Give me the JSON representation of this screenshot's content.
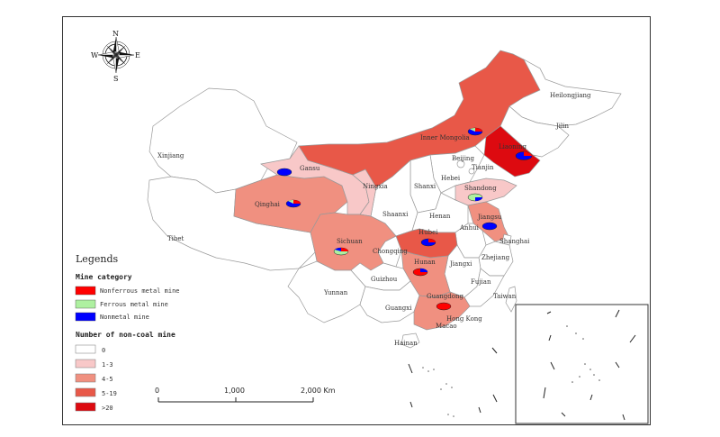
{
  "compass": {
    "n": "N",
    "s": "S",
    "e": "E",
    "w": "W"
  },
  "legend": {
    "title": "Legends",
    "mine_category_title": "Mine category",
    "categories": [
      {
        "label": "Nonferrous metal mine",
        "color": "#ff0000"
      },
      {
        "label": "Ferrous metal mine",
        "color": "#aef0a0"
      },
      {
        "label": "Nonmetal mine",
        "color": "#0000ff"
      }
    ],
    "count_title": "Number of non-coal mine",
    "classes": [
      {
        "label": "0",
        "color": "#ffffff"
      },
      {
        "label": "1-3",
        "color": "#f8c8c8"
      },
      {
        "label": "4-5",
        "color": "#f09080"
      },
      {
        "label": "5-19",
        "color": "#e85848"
      },
      {
        "label": ">20",
        "color": "#dd0a10"
      }
    ]
  },
  "scale_bar": {
    "labels": [
      "0",
      "1,000",
      "2,000 Km"
    ]
  },
  "provinces": {
    "xinjiang": "Xinjiang",
    "tibet": "Tibet",
    "qinghai": "Qinghai",
    "gansu": "Gansu",
    "ningxia": "Ningxia",
    "inner_mongolia": "Inner Mongolia",
    "heilongjiang": "Heilongjiang",
    "jilin": "Jilin",
    "liaoning": "Liaoning",
    "beijing": "Beijing",
    "tianjin": "Tianjin",
    "hebei": "Hebei",
    "shanxi": "Shanxi",
    "shandong": "Shandong",
    "shaanxi": "Shaanxi",
    "henan": "Henan",
    "jiangsu": "Jiangsu",
    "anhui": "Anhui",
    "shanghai": "Shanghai",
    "hubei": "Hubei",
    "sichuan": "Sichuan",
    "chongqing": "Chongqing",
    "zhejiang": "Zhejiang",
    "jiangxi": "Jiangxi",
    "hunan": "Hunan",
    "guizhou": "Guizhou",
    "yunnan": "Yunnan",
    "fujian": "Fujian",
    "taiwan": "Taiwan",
    "guangxi": "Guangxi",
    "guangdong": "Guangdong",
    "hong_kong": "Hong Kong",
    "macao": "Macao",
    "hainan": "Hainan"
  }
}
